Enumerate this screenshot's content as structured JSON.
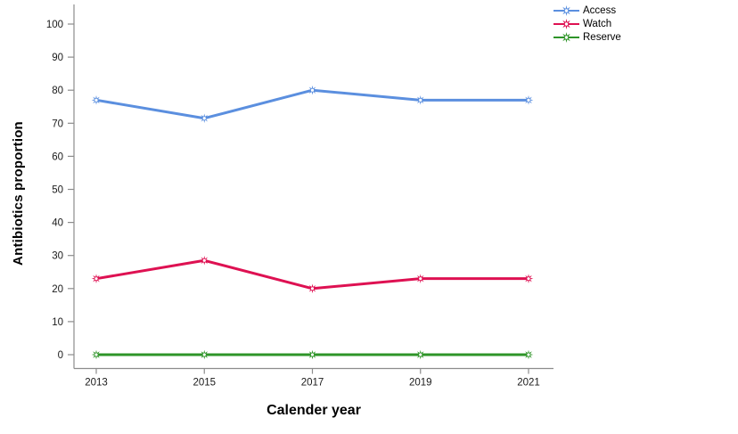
{
  "chart_data": {
    "type": "line",
    "title": "",
    "xlabel": "Calender year",
    "ylabel": "Antibiotics proportion",
    "categories": [
      "2013",
      "2015",
      "2017",
      "2019",
      "2021"
    ],
    "yticks": [
      0,
      10,
      20,
      30,
      40,
      50,
      60,
      70,
      80,
      90,
      100
    ],
    "ylim": [
      0,
      100
    ],
    "grid": false,
    "legend_position": "top-right",
    "marker_style": "8-point-star-with-white-center",
    "series": [
      {
        "name": "Access",
        "color": "#5B8FDF",
        "values": [
          77,
          71.5,
          80,
          77,
          77
        ]
      },
      {
        "name": "Watch",
        "color": "#DE1152",
        "values": [
          23,
          28.5,
          20,
          23,
          23
        ]
      },
      {
        "name": "Reserve",
        "color": "#2E9428",
        "values": [
          0,
          0,
          0,
          0,
          0
        ]
      }
    ],
    "axis_color": "#8c8c8c",
    "tick_label_color": "#1a1a1a"
  }
}
